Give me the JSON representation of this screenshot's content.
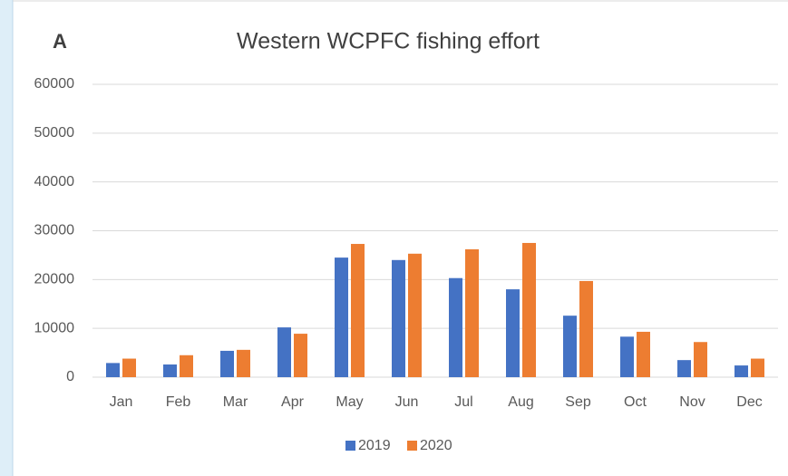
{
  "chart_data": {
    "type": "bar",
    "panel_label": "A",
    "title": "Western WCPFC fishing effort",
    "categories": [
      "Jan",
      "Feb",
      "Mar",
      "Apr",
      "May",
      "Jun",
      "Jul",
      "Aug",
      "Sep",
      "Oct",
      "Nov",
      "Dec"
    ],
    "series": [
      {
        "name": "2019",
        "color": "#4472c4",
        "values": [
          2900,
          2600,
          5400,
          10200,
          24500,
          24000,
          20300,
          18000,
          12600,
          8300,
          3500,
          2400
        ]
      },
      {
        "name": "2020",
        "color": "#ed7d31",
        "values": [
          3800,
          4500,
          5600,
          8900,
          27300,
          25300,
          26200,
          27500,
          19700,
          9300,
          7200,
          3800
        ]
      }
    ],
    "ylim": [
      0,
      60000
    ],
    "yticks": [
      0,
      10000,
      20000,
      30000,
      40000,
      50000,
      60000
    ],
    "grid": true,
    "legend": "bottom"
  }
}
